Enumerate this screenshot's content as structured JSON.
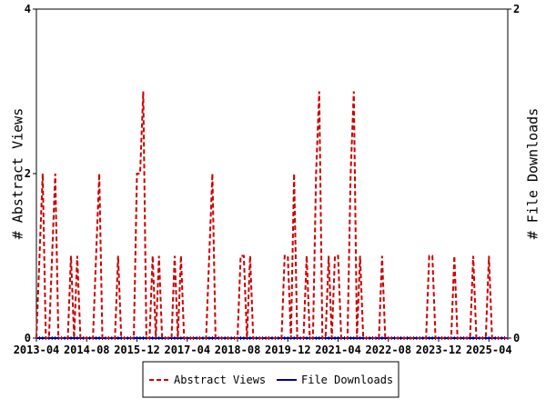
{
  "chart_data": {
    "type": "line",
    "y_label": "# Abstract Views",
    "y2_label": "# File Downloads",
    "categories": [
      "2013-04",
      null,
      null,
      null,
      null,
      null,
      null,
      null,
      null,
      null,
      null,
      null,
      null,
      null,
      null,
      null,
      "2014-08",
      null,
      null,
      null,
      null,
      null,
      null,
      null,
      null,
      null,
      null,
      null,
      null,
      null,
      null,
      null,
      "2015-12",
      null,
      null,
      null,
      null,
      null,
      null,
      null,
      null,
      null,
      null,
      null,
      null,
      null,
      null,
      null,
      "2017-04",
      null,
      null,
      null,
      null,
      null,
      null,
      null,
      null,
      null,
      null,
      null,
      null,
      null,
      null,
      null,
      "2018-08",
      null,
      null,
      null,
      null,
      null,
      null,
      null,
      null,
      null,
      null,
      null,
      null,
      null,
      null,
      null,
      "2019-12",
      null,
      null,
      null,
      null,
      null,
      null,
      null,
      null,
      null,
      null,
      null,
      null,
      null,
      null,
      null,
      "2021-04",
      null,
      null,
      null,
      null,
      null,
      null,
      null,
      null,
      null,
      null,
      null,
      null,
      null,
      null,
      null,
      "2022-08",
      null,
      null,
      null,
      null,
      null,
      null,
      null,
      null,
      null,
      null,
      null,
      null,
      null,
      null,
      null,
      "2023-12",
      null,
      null,
      null,
      null,
      null,
      null,
      null,
      null,
      null,
      null,
      null,
      null,
      null,
      null,
      null,
      "2025-04",
      null,
      null,
      null,
      null,
      null,
      null
    ],
    "series": [
      {
        "name": "Abstract Views",
        "color": "#cc0000",
        "axis": "y",
        "values": [
          0,
          1,
          2,
          0,
          0,
          1,
          2,
          0,
          0,
          0,
          0,
          1,
          0,
          1,
          0,
          0,
          0,
          0,
          0,
          1,
          2,
          0,
          0,
          0,
          0,
          0,
          1,
          0,
          0,
          0,
          0,
          0,
          2,
          2,
          3,
          0,
          0,
          1,
          0,
          1,
          0,
          0,
          0,
          0,
          1,
          0,
          1,
          0,
          0,
          0,
          0,
          0,
          0,
          0,
          0,
          1,
          2,
          0,
          0,
          0,
          0,
          0,
          0,
          0,
          0,
          1,
          1,
          0,
          1,
          0,
          0,
          0,
          0,
          0,
          0,
          0,
          0,
          0,
          0,
          1,
          1,
          0,
          2,
          0,
          0,
          0,
          1,
          0,
          0,
          2,
          3,
          0,
          0,
          1,
          0,
          1,
          1,
          0,
          0,
          0,
          2,
          3,
          0,
          1,
          0,
          0,
          0,
          0,
          0,
          0,
          1,
          0,
          0,
          0,
          0,
          0,
          0,
          0,
          0,
          0,
          0,
          0,
          0,
          0,
          0,
          1,
          1,
          0,
          0,
          0,
          0,
          0,
          0,
          1,
          0,
          0,
          0,
          0,
          0,
          1,
          0,
          0,
          0,
          0,
          1,
          0,
          0,
          0,
          0,
          0,
          0
        ]
      },
      {
        "name": "File Downloads",
        "color": "#000099",
        "axis": "y2",
        "values": [
          0,
          0,
          0,
          0,
          0,
          0,
          0,
          0,
          0,
          0,
          0,
          0,
          0,
          0,
          0,
          0,
          0,
          0,
          0,
          0,
          0,
          0,
          0,
          0,
          0,
          0,
          0,
          0,
          0,
          0,
          0,
          0,
          0,
          0,
          0,
          0,
          0,
          0,
          0,
          0,
          0,
          0,
          0,
          0,
          0,
          0,
          0,
          0,
          0,
          0,
          0,
          0,
          0,
          0,
          0,
          0,
          0,
          0,
          0,
          0,
          0,
          0,
          0,
          0,
          0,
          0,
          0,
          0,
          0,
          0,
          0,
          0,
          0,
          0,
          0,
          0,
          0,
          0,
          0,
          0,
          0,
          0,
          0,
          0,
          0,
          0,
          0,
          0,
          0,
          0,
          0,
          0,
          0,
          0,
          0,
          0,
          0,
          0,
          0,
          0,
          0,
          0,
          0,
          0,
          0,
          0,
          0,
          0,
          0,
          0,
          0,
          0,
          0,
          0,
          0,
          0,
          0,
          0,
          0,
          0,
          0,
          0,
          0,
          0,
          0,
          0,
          0,
          0,
          0,
          0,
          0,
          0,
          0,
          0,
          0,
          0,
          0,
          0,
          0,
          0,
          0,
          0,
          0,
          0,
          0,
          0,
          0,
          0,
          0,
          0,
          0
        ]
      }
    ],
    "ylim": [
      0,
      4
    ],
    "yticks": [
      0,
      2,
      4
    ],
    "y2lim": [
      0,
      2
    ],
    "y2ticks": [
      0,
      2
    ],
    "legend": "bottom"
  }
}
